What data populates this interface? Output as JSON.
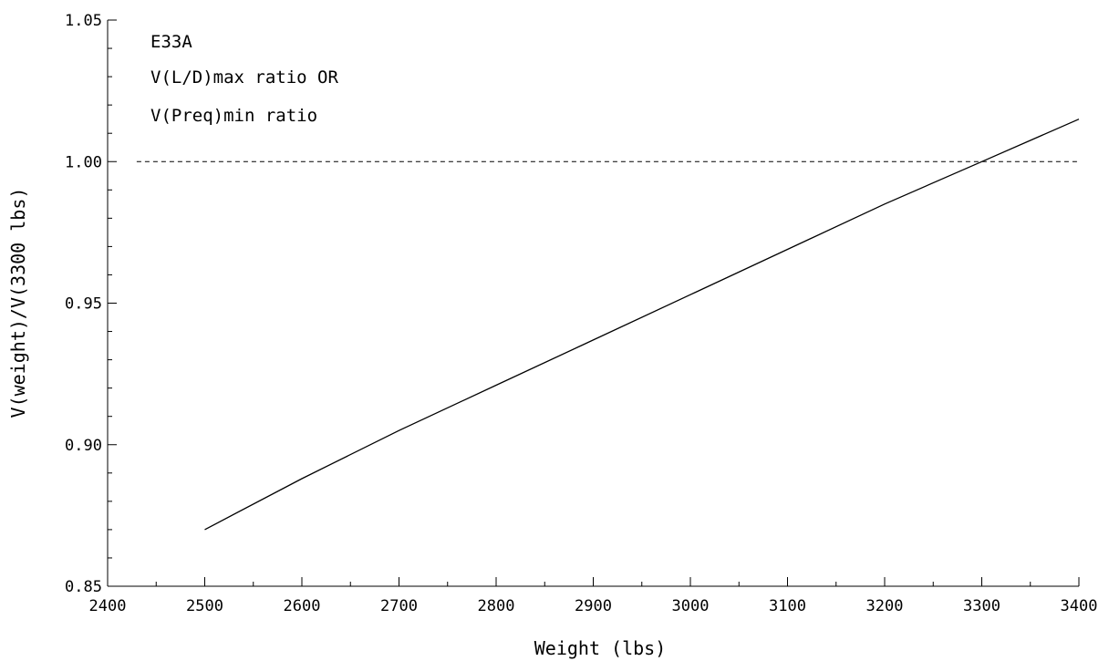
{
  "chart_data": {
    "type": "line",
    "title": "",
    "xlabel": "Weight (lbs)",
    "ylabel": "V(weight)/V(3300 lbs)",
    "xlim": [
      2400,
      3400
    ],
    "ylim": [
      0.85,
      1.05
    ],
    "x_ticks": [
      "2400",
      "2500",
      "2600",
      "2700",
      "2800",
      "2900",
      "3000",
      "3100",
      "3200",
      "3300",
      "3400"
    ],
    "y_ticks": [
      "0.85",
      "0.90",
      "0.95",
      "1.00",
      "1.05"
    ],
    "grid": false,
    "annotations": [
      "E33A",
      "V(L/D)max ratio OR",
      "V(Preq)min ratio"
    ],
    "series": [
      {
        "style": "solid",
        "x": [
          2500,
          2600,
          2700,
          2800,
          2900,
          3000,
          3100,
          3200,
          3300,
          3400
        ],
        "y": [
          0.87,
          0.888,
          0.905,
          0.921,
          0.937,
          0.953,
          0.969,
          0.985,
          1.0,
          1.015
        ]
      },
      {
        "style": "dashed",
        "x": [
          2430,
          3400
        ],
        "y": [
          1.0,
          1.0
        ]
      }
    ]
  }
}
